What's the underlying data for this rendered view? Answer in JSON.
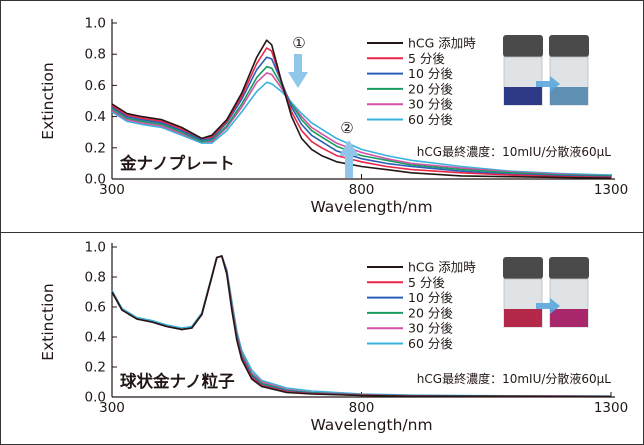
{
  "chart_data": [
    {
      "type": "line",
      "panel_label": "金ナノプレート",
      "xlabel": "Wavelength/nm",
      "ylabel": "Extinction",
      "xlim": [
        300,
        1300
      ],
      "ylim": [
        0,
        1.0
      ],
      "x_ticks": [
        "300",
        "800",
        "1300"
      ],
      "y_ticks": [
        "0.0",
        "0.2",
        "0.4",
        "0.6",
        "0.8",
        "1.0"
      ],
      "note": "hCG最終濃度：10mIU/分散液60μL",
      "annotations": [
        "①",
        "②"
      ],
      "legend_position": "top-right",
      "grid": false,
      "x": [
        300,
        330,
        360,
        400,
        440,
        480,
        500,
        530,
        560,
        590,
        610,
        620,
        640,
        660,
        680,
        700,
        720,
        750,
        800,
        850,
        900,
        1000,
        1100,
        1200,
        1300
      ],
      "series": [
        {
          "name": "hCG 添加時",
          "color": "#231815",
          "values": [
            0.48,
            0.42,
            0.4,
            0.38,
            0.33,
            0.26,
            0.28,
            0.38,
            0.55,
            0.78,
            0.89,
            0.86,
            0.62,
            0.4,
            0.26,
            0.19,
            0.15,
            0.11,
            0.08,
            0.06,
            0.04,
            0.02,
            0.015,
            0.01,
            0.005
          ]
        },
        {
          "name": "5 分後",
          "color": "#e8274a",
          "values": [
            0.47,
            0.41,
            0.39,
            0.37,
            0.32,
            0.26,
            0.27,
            0.37,
            0.53,
            0.74,
            0.84,
            0.82,
            0.62,
            0.43,
            0.31,
            0.24,
            0.2,
            0.15,
            0.11,
            0.08,
            0.06,
            0.04,
            0.025,
            0.015,
            0.01
          ]
        },
        {
          "name": "10 分後",
          "color": "#2b60b8",
          "values": [
            0.46,
            0.4,
            0.38,
            0.36,
            0.31,
            0.25,
            0.26,
            0.36,
            0.51,
            0.7,
            0.78,
            0.77,
            0.62,
            0.46,
            0.35,
            0.28,
            0.24,
            0.18,
            0.13,
            0.1,
            0.08,
            0.05,
            0.03,
            0.02,
            0.015
          ]
        },
        {
          "name": "20 分後",
          "color": "#1a9c61",
          "values": [
            0.45,
            0.39,
            0.37,
            0.35,
            0.3,
            0.24,
            0.25,
            0.34,
            0.48,
            0.65,
            0.72,
            0.71,
            0.6,
            0.48,
            0.38,
            0.31,
            0.27,
            0.21,
            0.15,
            0.12,
            0.09,
            0.06,
            0.04,
            0.025,
            0.02
          ]
        },
        {
          "name": "30 分後",
          "color": "#d452a6",
          "values": [
            0.44,
            0.38,
            0.36,
            0.34,
            0.29,
            0.24,
            0.24,
            0.33,
            0.46,
            0.62,
            0.68,
            0.67,
            0.58,
            0.48,
            0.4,
            0.33,
            0.29,
            0.23,
            0.17,
            0.13,
            0.1,
            0.07,
            0.045,
            0.03,
            0.02
          ]
        },
        {
          "name": "60 分後",
          "color": "#39b3dc",
          "values": [
            0.43,
            0.37,
            0.35,
            0.33,
            0.28,
            0.23,
            0.23,
            0.31,
            0.43,
            0.56,
            0.62,
            0.61,
            0.56,
            0.49,
            0.42,
            0.36,
            0.32,
            0.26,
            0.19,
            0.15,
            0.12,
            0.08,
            0.05,
            0.035,
            0.025
          ]
        }
      ]
    },
    {
      "type": "line",
      "panel_label": "球状金ナノ粒子",
      "xlabel": "Wavelength/nm",
      "ylabel": "Extinction",
      "xlim": [
        300,
        1300
      ],
      "ylim": [
        0,
        1.0
      ],
      "x_ticks": [
        "300",
        "800",
        "1300"
      ],
      "y_ticks": [
        "0.0",
        "0.2",
        "0.4",
        "0.6",
        "0.8",
        "1.0"
      ],
      "note": "hCG最終濃度：10mIU/分散液60μL",
      "legend_position": "top-right",
      "grid": false,
      "x": [
        300,
        320,
        350,
        380,
        410,
        440,
        460,
        480,
        500,
        510,
        520,
        530,
        540,
        550,
        560,
        580,
        600,
        650,
        700,
        800,
        900,
        1000,
        1100,
        1200,
        1300
      ],
      "series": [
        {
          "name": "hCG 添加時",
          "color": "#231815",
          "values": [
            0.7,
            0.58,
            0.52,
            0.5,
            0.47,
            0.45,
            0.46,
            0.55,
            0.8,
            0.93,
            0.94,
            0.82,
            0.58,
            0.38,
            0.25,
            0.12,
            0.07,
            0.03,
            0.02,
            0.01,
            0.005,
            0.005,
            0.004,
            0.003,
            0.002
          ]
        },
        {
          "name": "5 分後",
          "color": "#e8274a",
          "values": [
            0.7,
            0.58,
            0.52,
            0.5,
            0.47,
            0.45,
            0.46,
            0.55,
            0.8,
            0.93,
            0.94,
            0.82,
            0.59,
            0.39,
            0.26,
            0.13,
            0.075,
            0.035,
            0.022,
            0.011,
            0.006,
            0.005,
            0.004,
            0.003,
            0.002
          ]
        },
        {
          "name": "10 分後",
          "color": "#2b60b8",
          "values": [
            0.7,
            0.58,
            0.52,
            0.5,
            0.47,
            0.45,
            0.46,
            0.55,
            0.8,
            0.93,
            0.94,
            0.83,
            0.6,
            0.4,
            0.27,
            0.14,
            0.08,
            0.04,
            0.025,
            0.012,
            0.007,
            0.006,
            0.005,
            0.004,
            0.003
          ]
        },
        {
          "name": "20 分後",
          "color": "#1a9c61",
          "values": [
            0.7,
            0.58,
            0.52,
            0.5,
            0.47,
            0.45,
            0.46,
            0.55,
            0.8,
            0.93,
            0.94,
            0.83,
            0.61,
            0.41,
            0.28,
            0.15,
            0.09,
            0.045,
            0.028,
            0.014,
            0.008,
            0.007,
            0.006,
            0.005,
            0.004
          ]
        },
        {
          "name": "30 分後",
          "color": "#d452a6",
          "values": [
            0.7,
            0.58,
            0.52,
            0.5,
            0.47,
            0.45,
            0.46,
            0.55,
            0.8,
            0.93,
            0.94,
            0.84,
            0.62,
            0.42,
            0.29,
            0.16,
            0.1,
            0.05,
            0.03,
            0.016,
            0.009,
            0.008,
            0.007,
            0.006,
            0.005
          ]
        },
        {
          "name": "60 分後",
          "color": "#39b3dc",
          "values": [
            0.71,
            0.59,
            0.53,
            0.51,
            0.48,
            0.46,
            0.47,
            0.56,
            0.81,
            0.93,
            0.94,
            0.85,
            0.64,
            0.44,
            0.31,
            0.18,
            0.11,
            0.06,
            0.04,
            0.02,
            0.012,
            0.01,
            0.008,
            0.007,
            0.006
          ]
        }
      ]
    }
  ],
  "vials": [
    {
      "left_color": "#2d3a86",
      "right_color": "#5f8fb2",
      "arrow_color": "#5aa6dc"
    },
    {
      "left_color": "#b4294a",
      "right_color": "#a8276d",
      "arrow_color": "#5aa6dc"
    }
  ],
  "arrow_color": "#8fc6ea"
}
